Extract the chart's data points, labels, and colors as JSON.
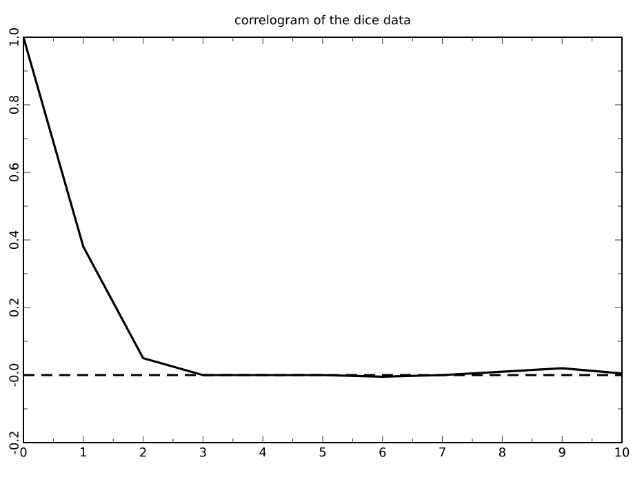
{
  "chart_data": {
    "type": "line",
    "title": "correlogram of the dice data",
    "x": [
      0,
      1,
      2,
      3,
      4,
      5,
      6,
      7,
      8,
      9,
      10
    ],
    "series": [
      {
        "color": "#000000",
        "values": [
          1.0,
          0.38,
          0.05,
          0.0,
          0.0,
          0.0,
          -0.005,
          0.0,
          0.01,
          0.02,
          0.005
        ]
      }
    ],
    "xlim": [
      0,
      10
    ],
    "xticks": [
      0,
      1,
      2,
      3,
      4,
      5,
      6,
      7,
      8,
      9,
      10
    ],
    "ylim": [
      -0.2,
      1.0
    ],
    "yticks": [
      -0.2,
      {
        "value": 0,
        "label": "-0.0"
      },
      0.2,
      0.4,
      0.6,
      0.8,
      {
        "value": 1.0,
        "label": "1.0"
      }
    ],
    "ref_lines": [
      {
        "axis": "y",
        "value": 0,
        "line_style": "dashed",
        "color": "#000000"
      }
    ],
    "grid": false,
    "marker": "none",
    "line_style": "solid"
  }
}
